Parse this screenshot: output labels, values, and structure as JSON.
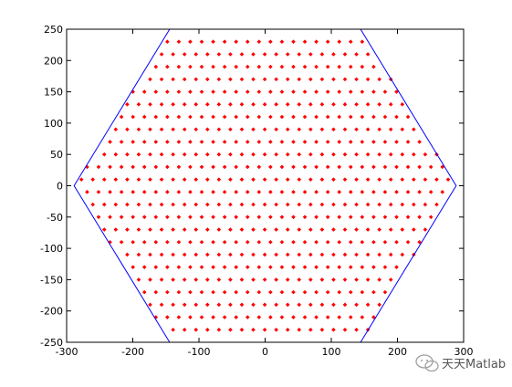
{
  "chart_data": {
    "type": "scatter",
    "title": "",
    "xlabel": "",
    "ylabel": "",
    "xlim": [
      -300,
      300
    ],
    "ylim": [
      -250,
      250
    ],
    "xticks": [
      -300,
      -200,
      -100,
      0,
      100,
      200,
      300
    ],
    "yticks": [
      -250,
      -200,
      -150,
      -100,
      -50,
      0,
      50,
      100,
      150,
      200,
      250
    ],
    "grid": false,
    "legend": "none",
    "hexagon": {
      "color": "#0000ff",
      "vertices": [
        [
          288.7,
          0
        ],
        [
          144.3,
          250
        ],
        [
          -144.3,
          250
        ],
        [
          -288.7,
          0
        ],
        [
          -144.3,
          -250
        ],
        [
          144.3,
          -250
        ]
      ]
    },
    "points": {
      "color": "#ff0000",
      "marker": "diamond",
      "x_start": -277.7,
      "x_step": 17.3205,
      "x_count": 33,
      "y_start": -230,
      "y_step": 20,
      "y_count": 25,
      "row_stagger": 8.66,
      "keep_inside": "hexagon"
    }
  },
  "watermark": {
    "text": "天天Matlab",
    "icon": "wechat-icon"
  }
}
